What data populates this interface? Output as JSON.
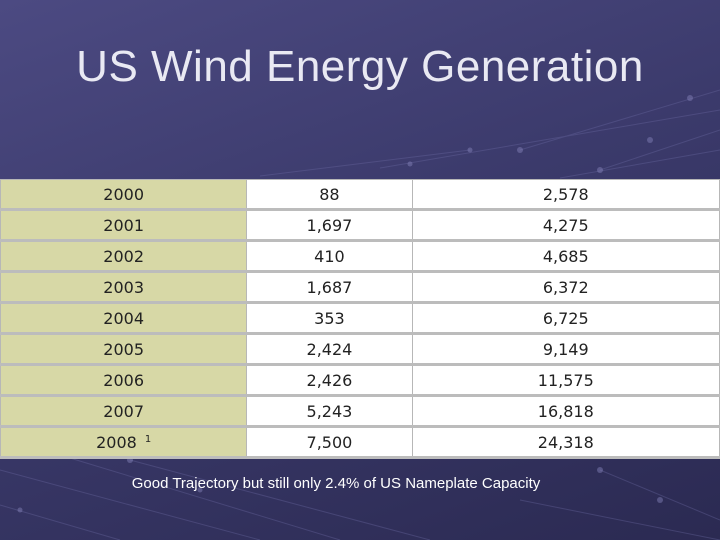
{
  "slide": {
    "title": "US Wind Energy Generation",
    "caption": "Good Trajectory but still only 2.4% of US Nameplate Capacity",
    "background_color": "#3b3a6b",
    "year_cell_color": "#d7d8a6"
  },
  "table": {
    "rows": [
      {
        "year": "2000",
        "added": "88",
        "cumulative": "2,578"
      },
      {
        "year": "2001",
        "added": "1,697",
        "cumulative": "4,275"
      },
      {
        "year": "2002",
        "added": "410",
        "cumulative": "4,685"
      },
      {
        "year": "2003",
        "added": "1,687",
        "cumulative": "6,372"
      },
      {
        "year": "2004",
        "added": "353",
        "cumulative": "6,725"
      },
      {
        "year": "2005",
        "added": "2,424",
        "cumulative": "9,149"
      },
      {
        "year": "2006",
        "added": "2,426",
        "cumulative": "11,575"
      },
      {
        "year": "2007",
        "added": "5,243",
        "cumulative": "16,818"
      },
      {
        "year": "2008",
        "footnote": "1",
        "added": "7,500",
        "cumulative": "24,318"
      }
    ]
  }
}
